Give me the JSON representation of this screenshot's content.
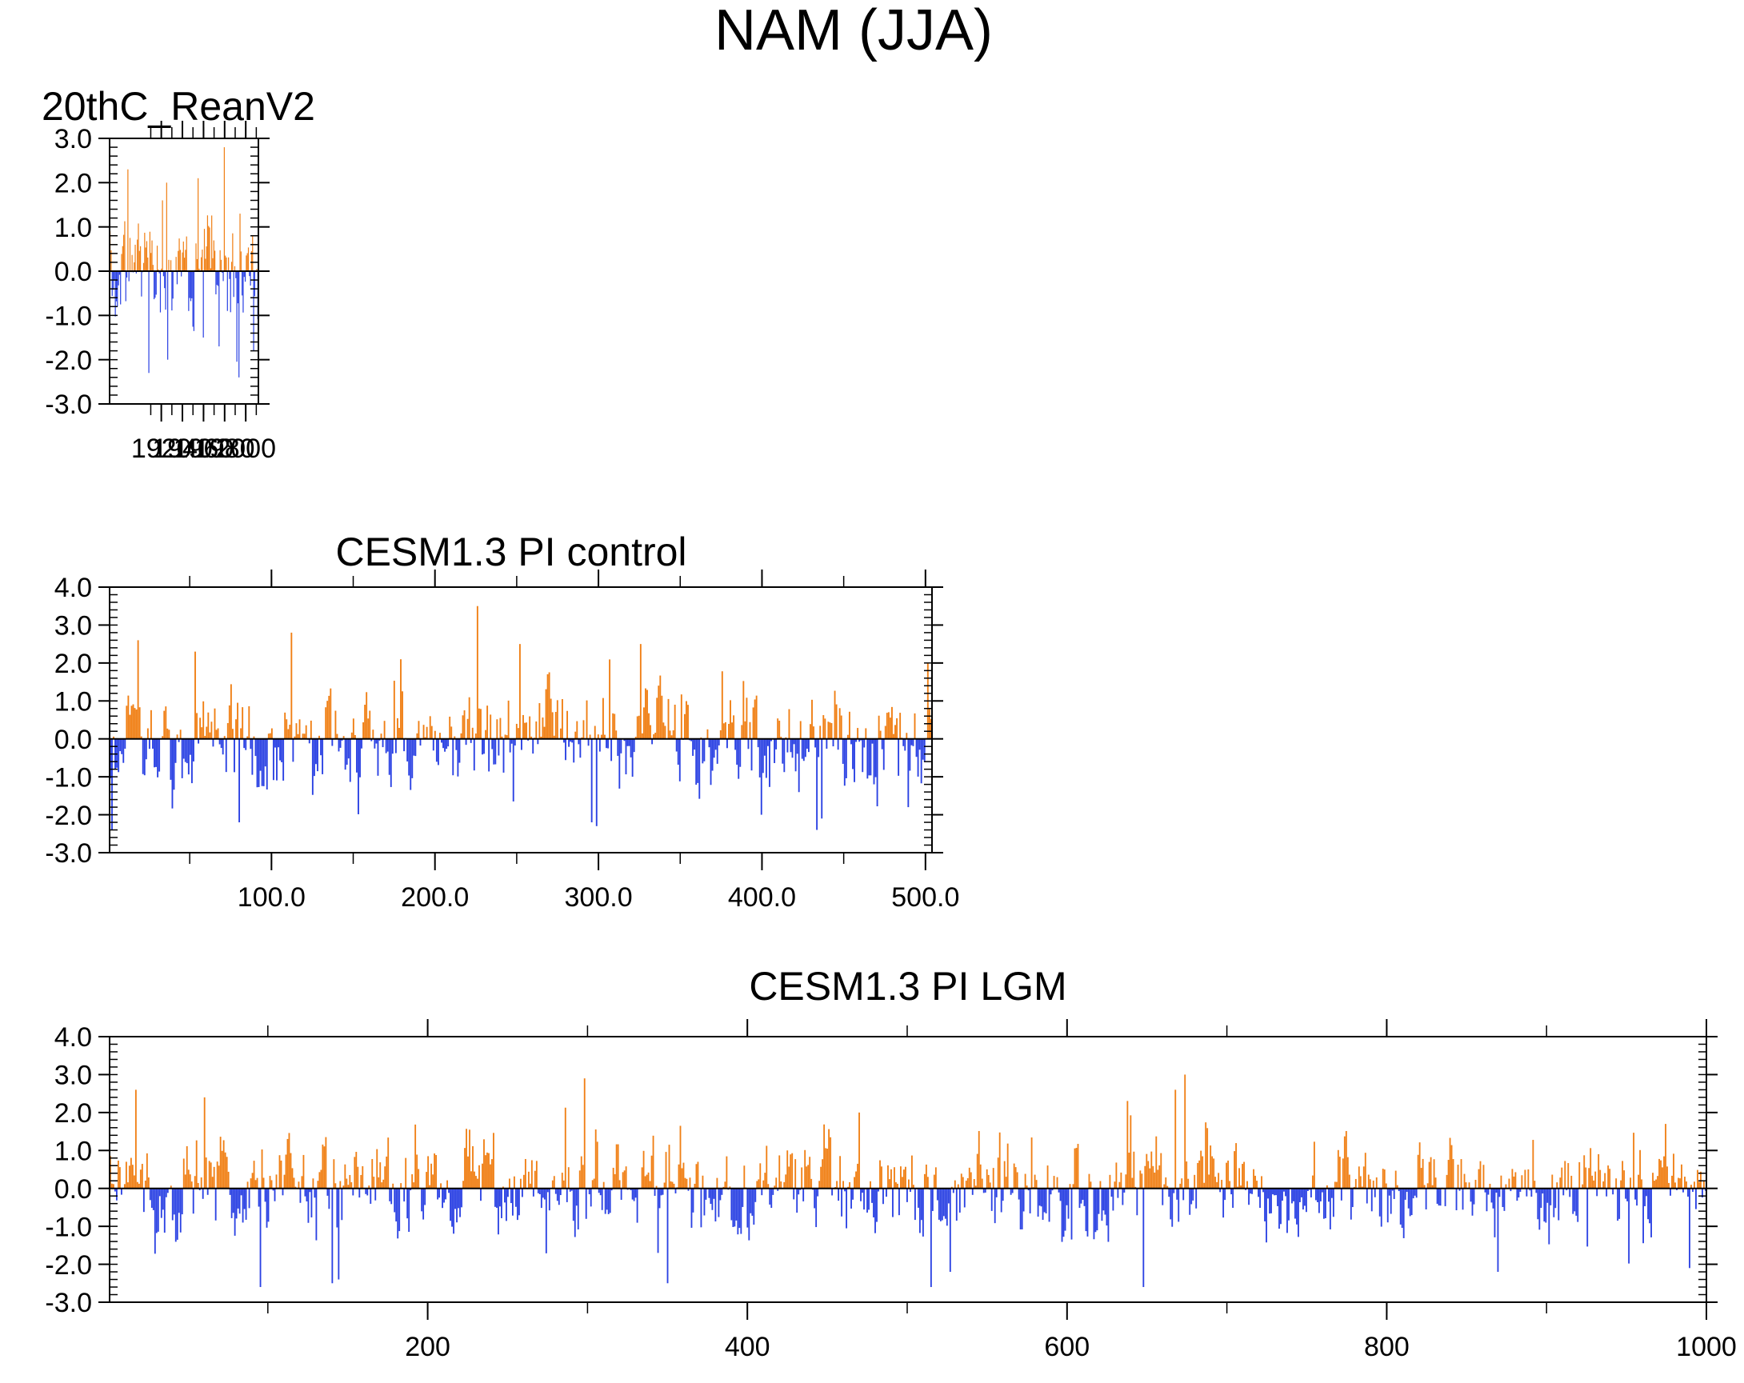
{
  "figure_title": "NAM (JJA)",
  "colors": {
    "positive": "#f07f14",
    "negative": "#2a41e3",
    "axis": "#000000"
  },
  "chart_data": [
    {
      "type": "bar",
      "title": "20thC_ReanV2",
      "title_align": "left",
      "x_range": [
        1871,
        2012
      ],
      "ylim": [
        -3.0,
        3.0
      ],
      "y_ticks": [
        -3.0,
        -2.0,
        -1.0,
        0.0,
        1.0,
        2.0,
        3.0
      ],
      "y_tick_labels": [
        "-3.0",
        "-2.0",
        "-1.0",
        "0.0",
        "1.0",
        "2.0",
        "3.0"
      ],
      "x_ticks": [
        1920,
        1940,
        1960,
        1980,
        2000
      ],
      "x_tick_labels": [
        "1920",
        "1940",
        "1960",
        "1980",
        "2000"
      ],
      "n": 142,
      "seed": 11,
      "peaks": [
        {
          "x": 1871,
          "v": 0.9
        },
        {
          "x": 1878,
          "v": -0.8
        },
        {
          "x": 1888,
          "v": 2.3
        },
        {
          "x": 1908,
          "v": -2.3
        },
        {
          "x": 1926,
          "v": -2.0
        },
        {
          "x": 1925,
          "v": 2.0
        },
        {
          "x": 1955,
          "v": 2.1
        },
        {
          "x": 1960,
          "v": -1.5
        },
        {
          "x": 1980,
          "v": 2.8
        },
        {
          "x": 1975,
          "v": -1.7
        },
        {
          "x": 2008,
          "v": -1.8
        },
        {
          "x": 1995,
          "v": 1.3
        }
      ]
    },
    {
      "type": "bar",
      "title": "CESM1.3 PI control",
      "title_align": "center",
      "x_range": [
        1,
        504
      ],
      "ylim": [
        -3.0,
        4.0
      ],
      "y_ticks": [
        -3.0,
        -2.0,
        -1.0,
        0.0,
        1.0,
        2.0,
        3.0,
        4.0
      ],
      "y_tick_labels": [
        "-3.0",
        "-2.0",
        "-1.0",
        "0.0",
        "1.0",
        "2.0",
        "3.0",
        "4.0"
      ],
      "x_ticks": [
        100,
        200,
        300,
        400,
        500
      ],
      "x_tick_labels": [
        "100.0",
        "200.0",
        "300.0",
        "400.0",
        "500.0"
      ],
      "n": 504,
      "seed": 23,
      "peaks": [
        {
          "x": 2,
          "v": -2.4
        },
        {
          "x": 53,
          "v": 2.3
        },
        {
          "x": 80,
          "v": -2.2
        },
        {
          "x": 112,
          "v": 2.8
        },
        {
          "x": 226,
          "v": 3.5
        },
        {
          "x": 252,
          "v": 2.5
        },
        {
          "x": 296,
          "v": -2.2
        },
        {
          "x": 299,
          "v": -2.3
        },
        {
          "x": 326,
          "v": 2.5
        },
        {
          "x": 400,
          "v": -2.0
        },
        {
          "x": 437,
          "v": -2.1
        },
        {
          "x": 502,
          "v": 2.0
        },
        {
          "x": 490,
          "v": -1.8
        }
      ]
    },
    {
      "type": "bar",
      "title": "CESM1.3 PI LGM",
      "title_align": "center",
      "x_range": [
        1,
        1000
      ],
      "ylim": [
        -3.0,
        4.0
      ],
      "y_ticks": [
        -3.0,
        -2.0,
        -1.0,
        0.0,
        1.0,
        2.0,
        3.0,
        4.0
      ],
      "y_tick_labels": [
        "-3.0",
        "-2.0",
        "-1.0",
        "0.0",
        "1.0",
        "2.0",
        "3.0",
        "4.0"
      ],
      "x_ticks": [
        200,
        400,
        600,
        800,
        1000
      ],
      "x_tick_labels": [
        "200",
        "400",
        "600",
        "800",
        "1000"
      ],
      "n": 1000,
      "seed": 37,
      "peaks": [
        {
          "x": 95,
          "v": -2.6
        },
        {
          "x": 140,
          "v": -2.5
        },
        {
          "x": 298,
          "v": 2.9
        },
        {
          "x": 350,
          "v": -2.5
        },
        {
          "x": 515,
          "v": -2.6
        },
        {
          "x": 527,
          "v": -2.2
        },
        {
          "x": 648,
          "v": -2.6
        },
        {
          "x": 674,
          "v": 3.0
        },
        {
          "x": 668,
          "v": 2.6
        },
        {
          "x": 870,
          "v": -2.2
        },
        {
          "x": 990,
          "v": -2.1
        },
        {
          "x": 60,
          "v": 2.4
        },
        {
          "x": 470,
          "v": 2.0
        },
        {
          "x": 975,
          "v": 1.7
        }
      ]
    }
  ]
}
